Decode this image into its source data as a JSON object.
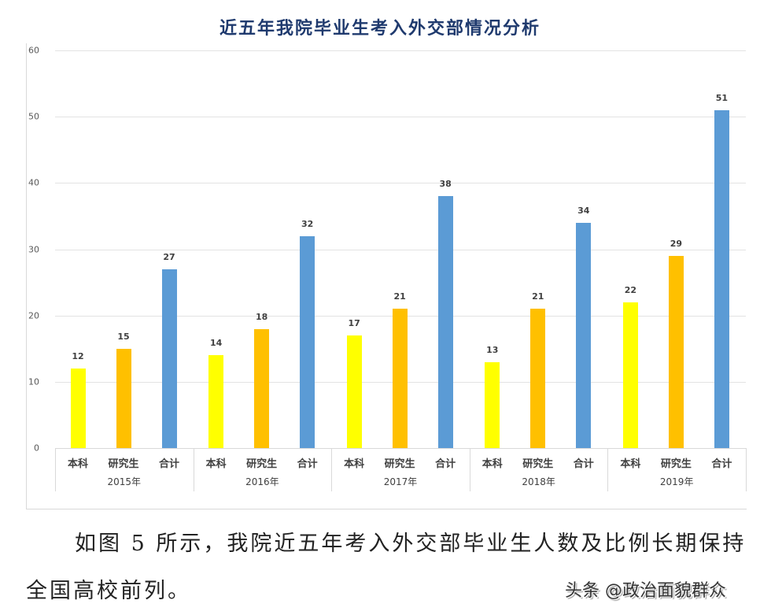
{
  "chart_data": {
    "type": "bar",
    "title": "近五年我院毕业生考入外交部情况分析",
    "xlabel": "",
    "ylabel": "",
    "ylim": [
      0,
      60
    ],
    "yticks": [
      0,
      10,
      20,
      30,
      40,
      50,
      60
    ],
    "grid": true,
    "legend": "none",
    "categories": [
      "2015年",
      "2016年",
      "2017年",
      "2018年",
      "2019年"
    ],
    "subcategories": [
      "本科",
      "研究生",
      "合计"
    ],
    "series": [
      {
        "name": "本科",
        "color": "#ffff00",
        "values": [
          12,
          14,
          17,
          13,
          22
        ]
      },
      {
        "name": "研究生",
        "color": "#ffc000",
        "values": [
          15,
          18,
          21,
          21,
          29
        ]
      },
      {
        "name": "合计",
        "color": "#5b9bd5",
        "values": [
          27,
          32,
          38,
          34,
          51
        ]
      }
    ]
  },
  "text": {
    "paragraph_line1": "如图 5 所示，我院近五年考入外交部毕业生人数及比例长期保持",
    "paragraph_line2": "全国高校前列。",
    "watermark": "头条 @政治面貌群众"
  }
}
